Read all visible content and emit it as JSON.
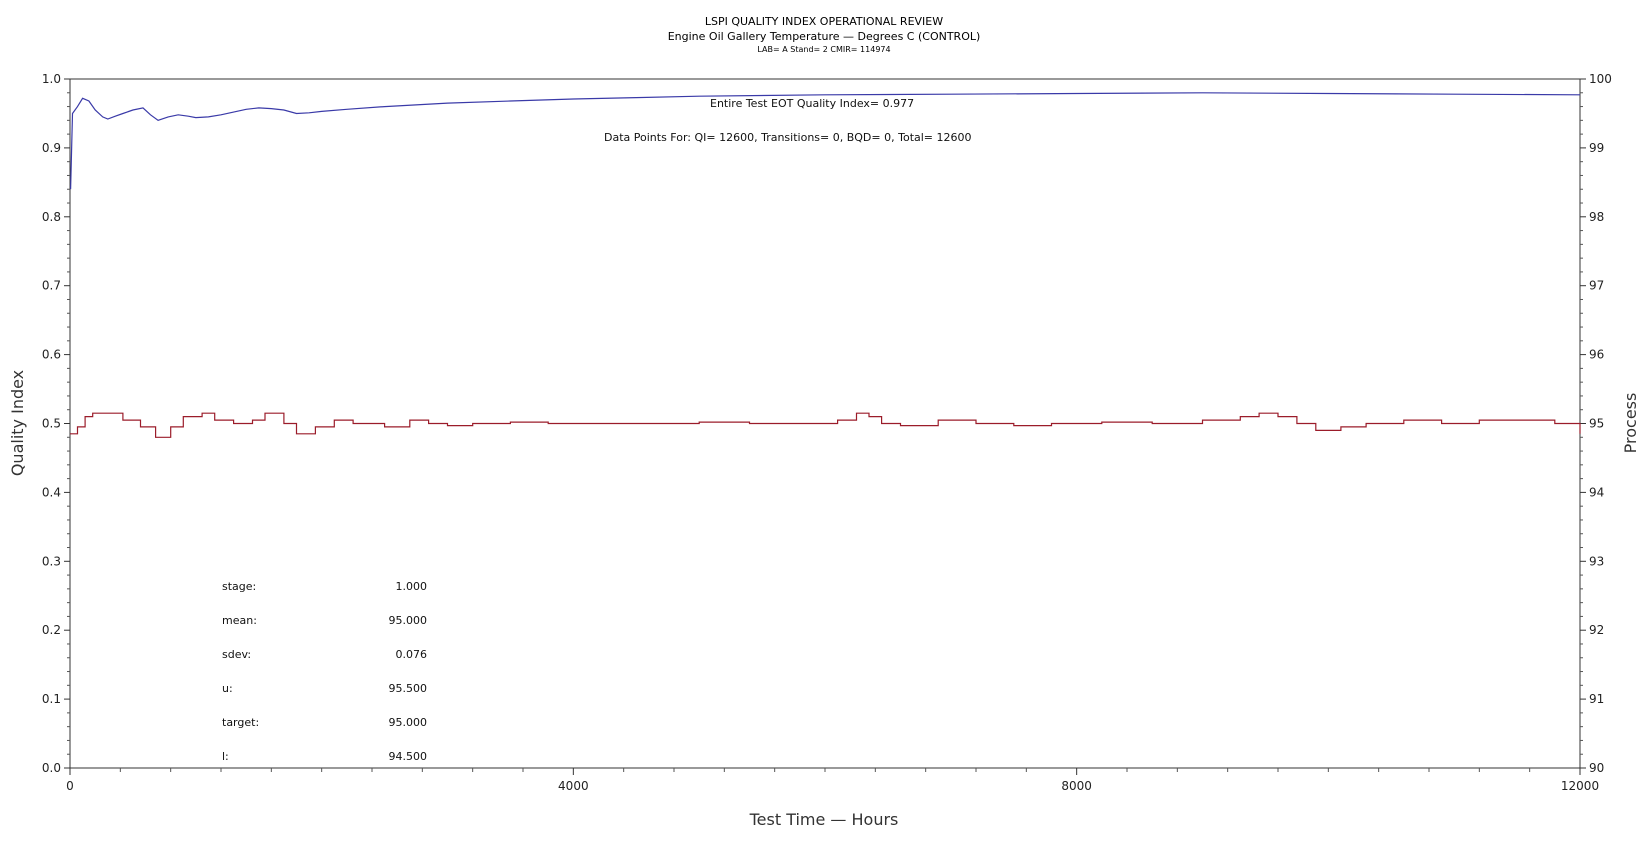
{
  "chart_data": {
    "type": "line",
    "title": "LSPI QUALITY INDEX OPERATIONAL REVIEW",
    "subtitle": "Engine Oil Gallery Temperature — Degrees C (CONTROL)",
    "subtitle2": "LAB= A Stand= 2 CMIR= 114974",
    "xlabel": "Test Time — Hours",
    "ylabel": "Quality Index",
    "y2label": "Process",
    "xlim": [
      0,
      12000
    ],
    "ylim": [
      0.0,
      1.0
    ],
    "y2lim": [
      90,
      100
    ],
    "x_ticks": [
      0,
      4000,
      8000,
      12000
    ],
    "y_ticks": [
      "0.0",
      "0.1",
      "0.2",
      "0.3",
      "0.4",
      "0.5",
      "0.6",
      "0.7",
      "0.8",
      "0.9",
      "1.0"
    ],
    "y2_ticks": [
      "90",
      "91",
      "92",
      "93",
      "94",
      "95",
      "96",
      "97",
      "98",
      "99",
      "100"
    ],
    "annotations": {
      "qi": "Entire Test EOT Quality Index=   0.977",
      "points": "Data Points For: QI= 12600, Transitions=      0, BQD=      0, Total= 12600"
    },
    "stats": [
      {
        "label": "stage:",
        "value": "1.000"
      },
      {
        "label": "mean:",
        "value": "95.000"
      },
      {
        "label": "sdev:",
        "value": "0.076"
      },
      {
        "label": "u:",
        "value": "95.500"
      },
      {
        "label": "target:",
        "value": "95.000"
      },
      {
        "label": "l:",
        "value": "94.500"
      }
    ],
    "series": [
      {
        "color": "#3a3aa8",
        "axis": "left",
        "x": [
          5,
          20,
          60,
          100,
          150,
          200,
          260,
          300,
          360,
          420,
          500,
          580,
          640,
          700,
          780,
          860,
          940,
          1000,
          1100,
          1200,
          1300,
          1400,
          1500,
          1600,
          1700,
          1800,
          1900,
          2000,
          2200,
          2500,
          3000,
          3500,
          4000,
          4500,
          5000,
          6000,
          7000,
          8000,
          9000,
          10000,
          11000,
          12000
        ],
        "y": [
          0.84,
          0.95,
          0.96,
          0.972,
          0.968,
          0.955,
          0.945,
          0.942,
          0.946,
          0.95,
          0.955,
          0.958,
          0.948,
          0.94,
          0.945,
          0.948,
          0.946,
          0.944,
          0.945,
          0.948,
          0.952,
          0.956,
          0.958,
          0.957,
          0.955,
          0.95,
          0.951,
          0.953,
          0.956,
          0.96,
          0.965,
          0.968,
          0.971,
          0.973,
          0.975,
          0.977,
          0.978,
          0.979,
          0.98,
          0.979,
          0.978,
          0.977
        ]
      },
      {
        "color": "#9b1c2a",
        "axis": "right",
        "x": [
          0,
          60,
          120,
          180,
          300,
          420,
          560,
          680,
          800,
          900,
          1050,
          1150,
          1300,
          1450,
          1550,
          1700,
          1800,
          1950,
          2100,
          2250,
          2500,
          2700,
          2850,
          3000,
          3200,
          3500,
          3800,
          4200,
          4600,
          5000,
          5400,
          5800,
          6100,
          6250,
          6350,
          6450,
          6600,
          6900,
          7200,
          7500,
          7800,
          8200,
          8600,
          9000,
          9300,
          9450,
          9600,
          9750,
          9900,
          10100,
          10300,
          10600,
          10900,
          11200,
          11400,
          11600,
          11800,
          12000
        ],
        "y": [
          94.85,
          94.95,
          95.1,
          95.15,
          95.15,
          95.05,
          94.95,
          94.8,
          94.95,
          95.1,
          95.15,
          95.05,
          95.0,
          95.05,
          95.15,
          95.0,
          94.85,
          94.95,
          95.05,
          95.0,
          94.95,
          95.05,
          95.0,
          94.97,
          95.0,
          95.02,
          95.0,
          95.0,
          95.0,
          95.02,
          95.0,
          95.0,
          95.05,
          95.15,
          95.1,
          95.0,
          94.97,
          95.05,
          95.0,
          94.97,
          95.0,
          95.02,
          95.0,
          95.05,
          95.1,
          95.15,
          95.1,
          95.0,
          94.9,
          94.95,
          95.0,
          95.05,
          95.0,
          95.05,
          95.05,
          95.05,
          95.0,
          94.85
        ]
      }
    ]
  }
}
